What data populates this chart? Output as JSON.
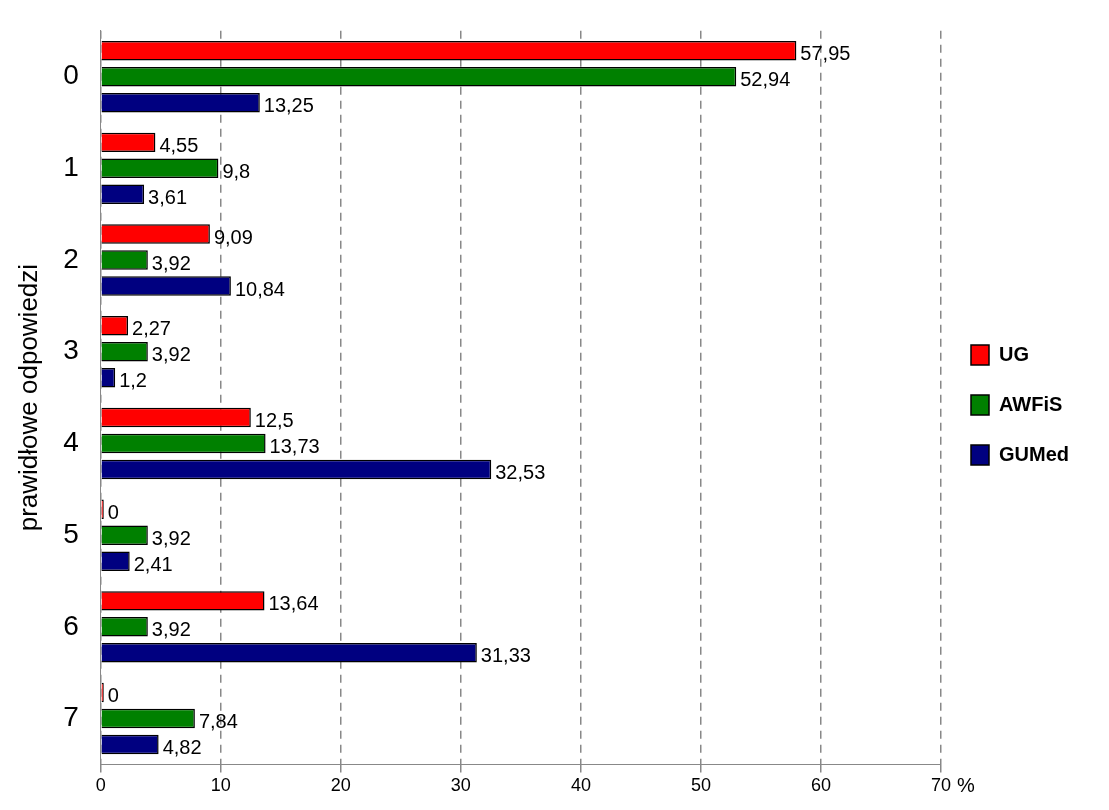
{
  "chart_data": {
    "type": "bar",
    "orientation": "horizontal",
    "ylabel": "prawidłowe odpowiedzi",
    "xlabel": "%",
    "categories": [
      "0",
      "1",
      "2",
      "3",
      "4",
      "5",
      "6",
      "7"
    ],
    "series": [
      {
        "name": "UG",
        "color": "#ff0000",
        "values": [
          57.95,
          4.55,
          9.09,
          2.27,
          12.5,
          0,
          13.64,
          0
        ],
        "value_labels": [
          "57,95",
          "4,55",
          "9,09",
          "2,27",
          "12,5",
          "0",
          "13,64",
          "0"
        ]
      },
      {
        "name": "AWFiS",
        "color": "#008000",
        "values": [
          52.94,
          9.8,
          3.92,
          3.92,
          13.73,
          3.92,
          3.92,
          7.84
        ],
        "value_labels": [
          "52,94",
          "9,8",
          "3,92",
          "3,92",
          "13,73",
          "3,92",
          "3,92",
          "7,84"
        ]
      },
      {
        "name": "GUMed",
        "color": "#000080",
        "values": [
          13.25,
          3.61,
          10.84,
          1.2,
          32.53,
          2.41,
          31.33,
          4.82
        ],
        "value_labels": [
          "13,25",
          "3,61",
          "10,84",
          "1,2",
          "32,53",
          "2,41",
          "31,33",
          "4,82"
        ]
      }
    ],
    "xlim": [
      0,
      70
    ],
    "xticks": [
      0,
      10,
      20,
      30,
      40,
      50,
      60,
      70
    ],
    "grid": "x",
    "legend": "right"
  }
}
